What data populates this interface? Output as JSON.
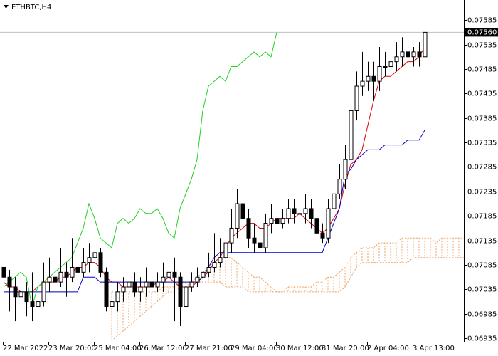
{
  "chart_data": {
    "type": "candlestick",
    "title": "ETHBTC,H4",
    "categories": [
      "22 Mar 2022",
      null,
      null,
      null,
      null,
      null,
      null,
      null,
      "23 Mar 20:00",
      null,
      null,
      null,
      null,
      null,
      null,
      null,
      "25 Mar 04:00",
      null,
      null,
      null,
      null,
      null,
      null,
      null,
      "26 Mar 12:00",
      null,
      null,
      null,
      null,
      null,
      null,
      null,
      "27 Mar 21:00",
      null,
      null,
      null,
      null,
      null,
      null,
      null,
      "29 Mar 04:00",
      null,
      null,
      null,
      null,
      null,
      null,
      null,
      "30 Mar 12:00",
      null,
      null,
      null,
      null,
      null,
      null,
      null,
      "31 Mar 20:00",
      null,
      null,
      null,
      null,
      null,
      null,
      null,
      "2 Apr 04:00",
      null,
      null,
      null,
      null,
      null,
      null,
      null,
      "3 Apr 13:00",
      null,
      null,
      null,
      null,
      null,
      null,
      null,
      null,
      null
    ],
    "open": [
      0.0708,
      0.0706,
      0.0704,
      0.0702,
      0.0703,
      0.0701,
      0.07,
      0.0701,
      0.0705,
      0.0706,
      0.0705,
      0.0707,
      0.0706,
      0.0708,
      0.0707,
      0.0709,
      0.071,
      0.0711,
      0.0707,
      0.07,
      0.0701,
      0.0703,
      0.0704,
      0.0705,
      0.0703,
      0.0704,
      0.0705,
      0.0704,
      0.0705,
      0.0706,
      0.0707,
      0.0706,
      0.07,
      0.0704,
      0.0705,
      0.0706,
      0.0707,
      0.0708,
      0.0709,
      0.071,
      0.0713,
      0.0716,
      0.0721,
      0.0718,
      0.0714,
      0.0713,
      0.0712,
      0.0717,
      0.0718,
      0.0717,
      0.0718,
      0.072,
      0.0719,
      0.0719,
      0.072,
      0.0718,
      0.0715,
      0.0714,
      0.072,
      0.0723,
      0.0726,
      0.073,
      0.074,
      0.0745,
      0.0746,
      0.0747,
      0.0746,
      0.0749,
      0.0749,
      0.075,
      0.0751,
      0.0752,
      0.0751,
      0.0752,
      0.0751,
      null,
      null,
      null,
      null,
      null,
      null,
      null
    ],
    "high": [
      0.07095,
      0.07075,
      0.0706,
      0.0708,
      0.0705,
      0.0707,
      0.0712,
      0.0709,
      0.071,
      0.0715,
      0.0712,
      0.0709,
      0.0714,
      0.071,
      0.0712,
      0.0713,
      0.0714,
      0.0712,
      0.0708,
      0.0704,
      0.0705,
      0.0706,
      0.0707,
      0.0707,
      0.0706,
      0.0708,
      0.0707,
      0.0707,
      0.0709,
      0.071,
      0.071,
      0.0707,
      0.0706,
      0.0707,
      0.0708,
      0.071,
      0.0711,
      0.0715,
      0.0714,
      0.0717,
      0.072,
      0.0724,
      0.0723,
      0.072,
      0.0717,
      0.0715,
      0.0719,
      0.0721,
      0.072,
      0.072,
      0.0722,
      0.0722,
      0.0721,
      0.0723,
      0.0722,
      0.0719,
      0.0717,
      0.0722,
      0.0726,
      0.0729,
      0.0733,
      0.0742,
      0.0748,
      0.0752,
      0.075,
      0.075,
      0.0753,
      0.0752,
      0.0754,
      0.0754,
      0.0755,
      0.0754,
      0.0753,
      0.0754,
      0.076,
      null,
      null,
      null,
      null,
      null,
      null,
      null
    ],
    "low": [
      0.0701,
      0.0699,
      0.0697,
      0.0696,
      0.0698,
      0.0697,
      0.0699,
      0.07,
      0.0703,
      0.0703,
      0.0704,
      0.0702,
      0.0705,
      0.0705,
      0.0706,
      0.0707,
      0.0708,
      0.0706,
      0.0699,
      0.0699,
      0.0699,
      0.0701,
      0.0702,
      0.0702,
      0.0701,
      0.0702,
      0.0702,
      0.0703,
      0.0703,
      0.0704,
      0.0697,
      0.0696,
      0.0699,
      0.0703,
      0.0704,
      0.0705,
      0.0706,
      0.0707,
      0.0708,
      0.0709,
      0.0711,
      0.0714,
      0.0715,
      0.0712,
      0.0711,
      0.071,
      0.0711,
      0.0715,
      0.0715,
      0.0716,
      0.0717,
      0.0717,
      0.0717,
      0.0717,
      0.0716,
      0.0713,
      0.0713,
      0.0713,
      0.0719,
      0.0722,
      0.0724,
      0.0728,
      0.0738,
      0.0743,
      0.0744,
      0.0742,
      0.0744,
      0.0747,
      0.0747,
      0.0748,
      0.0749,
      0.075,
      0.0749,
      0.0749,
      0.075,
      null,
      null,
      null,
      null,
      null,
      null,
      null
    ],
    "close": [
      0.0706,
      0.0704,
      0.0702,
      0.0703,
      0.0701,
      0.07,
      0.0701,
      0.0705,
      0.0706,
      0.0705,
      0.0707,
      0.0706,
      0.0708,
      0.0707,
      0.0709,
      0.071,
      0.0711,
      0.0707,
      0.07,
      0.0701,
      0.0703,
      0.0704,
      0.0705,
      0.0703,
      0.0704,
      0.0705,
      0.0704,
      0.0705,
      0.0706,
      0.0707,
      0.0706,
      0.07,
      0.0704,
      0.0705,
      0.0706,
      0.0707,
      0.0708,
      0.0709,
      0.071,
      0.0713,
      0.0716,
      0.0721,
      0.0718,
      0.0714,
      0.0713,
      0.0712,
      0.0717,
      0.0718,
      0.0717,
      0.0718,
      0.072,
      0.0719,
      0.0719,
      0.072,
      0.0718,
      0.0715,
      0.0714,
      0.072,
      0.0723,
      0.0726,
      0.073,
      0.074,
      0.0745,
      0.0746,
      0.0747,
      0.0746,
      0.0749,
      0.0749,
      0.075,
      0.0751,
      0.0752,
      0.0751,
      0.0752,
      0.0751,
      0.0756,
      null,
      null,
      null,
      null,
      null,
      null,
      null
    ],
    "bull_color": "#ffffff",
    "bear_color": "#000000",
    "candle_outline": "#000000",
    "lines": [
      {
        "color": "#e00000",
        "values": [
          0.0705,
          0.0704,
          0.0704,
          0.0703,
          0.0703,
          0.0703,
          0.0704,
          0.0705,
          0.0705,
          0.0705,
          0.0706,
          0.0706,
          0.0707,
          0.0708,
          0.0708,
          0.0709,
          0.0709,
          0.0708,
          0.0706,
          0.0705,
          0.0705,
          0.0704,
          0.0704,
          0.0704,
          0.0704,
          0.0704,
          0.0704,
          0.0705,
          0.0705,
          0.0706,
          0.0705,
          0.0704,
          0.0704,
          0.0704,
          0.0705,
          0.0706,
          0.0707,
          0.0709,
          0.071,
          0.0712,
          0.0714,
          0.0715,
          0.0716,
          0.0717,
          0.0717,
          0.0716,
          0.0716,
          0.0717,
          0.0718,
          0.0718,
          0.0718,
          0.0718,
          0.0719,
          0.0718,
          0.0717,
          0.0716,
          0.0715,
          0.0716,
          0.0718,
          0.072,
          0.0725,
          0.0729,
          0.073,
          0.0732,
          0.0737,
          0.0742,
          0.0746,
          0.0747,
          0.0747,
          0.0748,
          0.0749,
          0.075,
          0.075,
          0.0751,
          0.0753,
          null,
          null,
          null,
          null,
          null,
          null,
          null
        ]
      },
      {
        "color": "#0000c8",
        "values": [
          0.0703,
          0.0703,
          0.0703,
          0.0703,
          0.0703,
          0.0703,
          0.0703,
          0.0703,
          0.0703,
          0.0703,
          0.0703,
          0.0703,
          0.0703,
          0.0703,
          0.0706,
          0.0706,
          0.0706,
          0.0705,
          0.0705,
          0.0705,
          0.0705,
          0.0705,
          0.0705,
          0.0705,
          0.0705,
          0.0705,
          0.0705,
          0.0705,
          0.0705,
          0.0705,
          0.0705,
          0.0705,
          0.0705,
          0.0705,
          0.0705,
          0.0706,
          0.0708,
          0.071,
          0.0711,
          0.0711,
          0.0711,
          0.0711,
          0.0711,
          0.0711,
          0.0711,
          0.0711,
          0.0711,
          0.0711,
          0.0711,
          0.0711,
          0.0711,
          0.0711,
          0.0711,
          0.0711,
          0.0711,
          0.0711,
          0.0711,
          0.0714,
          0.0717,
          0.072,
          0.0727,
          0.0728,
          0.073,
          0.0731,
          0.0732,
          0.0732,
          0.0732,
          0.0733,
          0.0733,
          0.0733,
          0.0733,
          0.0734,
          0.0734,
          0.0734,
          0.0736,
          null,
          null,
          null,
          null,
          null,
          null,
          null
        ]
      },
      {
        "color": "#22d022",
        "values": [
          0.0704,
          0.0705,
          0.0706,
          0.0707,
          0.0706,
          0.07,
          0.0704,
          0.0705,
          0.0706,
          0.0707,
          0.0708,
          0.0709,
          0.071,
          0.0713,
          0.0716,
          0.0721,
          0.0718,
          0.0714,
          0.0713,
          0.0712,
          0.0717,
          0.0718,
          0.0717,
          0.0718,
          0.072,
          0.0719,
          0.0719,
          0.072,
          0.0718,
          0.0715,
          0.0714,
          0.072,
          0.0723,
          0.0726,
          0.073,
          0.074,
          0.0745,
          0.0746,
          0.0747,
          0.0746,
          0.0749,
          0.0749,
          0.075,
          0.0751,
          0.0752,
          0.0751,
          0.0752,
          0.0751,
          0.0756,
          null,
          null,
          null,
          null,
          null,
          null,
          null,
          null,
          null,
          null,
          null,
          null,
          null,
          null,
          null,
          null,
          null,
          null,
          null,
          null,
          null,
          null,
          null,
          null,
          null,
          null,
          null,
          null,
          null,
          null,
          null,
          null,
          null
        ]
      }
    ],
    "cloud": {
      "color": "#f0a060",
      "span_a": [
        null,
        null,
        null,
        null,
        null,
        null,
        null,
        null,
        null,
        null,
        null,
        null,
        null,
        null,
        null,
        null,
        null,
        null,
        null,
        0.0693,
        0.0694,
        0.0695,
        0.0696,
        0.0697,
        0.0698,
        0.0699,
        0.07,
        0.0701,
        0.0702,
        0.0703,
        0.0703,
        0.0704,
        0.0704,
        0.0705,
        0.0706,
        0.0707,
        0.0708,
        0.0709,
        0.071,
        0.071,
        0.071,
        0.0709,
        0.0708,
        0.0707,
        0.0706,
        0.0706,
        0.0705,
        0.0704,
        0.0703,
        0.0703,
        0.0704,
        0.0704,
        0.0704,
        0.0704,
        0.0704,
        0.0705,
        0.0705,
        0.0706,
        0.0706,
        0.0707,
        0.0708,
        0.071,
        0.0711,
        0.0712,
        0.0712,
        0.0712,
        0.0713,
        0.0713,
        0.0713,
        0.0713,
        0.0714,
        0.0714,
        0.0714,
        0.0714,
        0.0714,
        0.0714,
        0.0713,
        0.0714,
        0.0714,
        0.0714,
        0.0714,
        0.0714
      ],
      "span_b": [
        null,
        null,
        null,
        null,
        null,
        null,
        null,
        null,
        null,
        null,
        null,
        null,
        null,
        null,
        null,
        null,
        null,
        null,
        null,
        0.0703,
        0.0703,
        0.0703,
        0.0703,
        0.0703,
        0.0703,
        0.0703,
        0.0703,
        0.0703,
        0.0704,
        0.0704,
        0.0704,
        0.0705,
        0.0705,
        0.0705,
        0.0705,
        0.0705,
        0.0705,
        0.0705,
        0.0705,
        0.0704,
        0.0704,
        0.0704,
        0.0704,
        0.0703,
        0.0703,
        0.0703,
        0.0703,
        0.0703,
        0.0703,
        0.0703,
        0.0703,
        0.0703,
        0.0703,
        0.0703,
        0.0703,
        0.0703,
        0.0703,
        0.0703,
        0.0703,
        0.0703,
        0.0704,
        0.0706,
        0.0708,
        0.0709,
        0.0709,
        0.0709,
        0.0709,
        0.0709,
        0.0709,
        0.0709,
        0.0709,
        0.0709,
        0.071,
        0.071,
        0.071,
        0.071,
        0.071,
        0.071,
        0.071,
        0.071,
        0.071,
        0.071
      ]
    },
    "last_price": {
      "value": 0.0756,
      "label": "0.07560"
    },
    "price_line_color": "#c0c0c0",
    "ylim": [
      0.06928,
      0.07626
    ],
    "yticks": [
      0.06935,
      0.06985,
      0.07035,
      0.07085,
      0.07135,
      0.07185,
      0.07235,
      0.07285,
      0.07335,
      0.07385,
      0.07435,
      0.07485,
      0.07535,
      0.07585
    ]
  }
}
